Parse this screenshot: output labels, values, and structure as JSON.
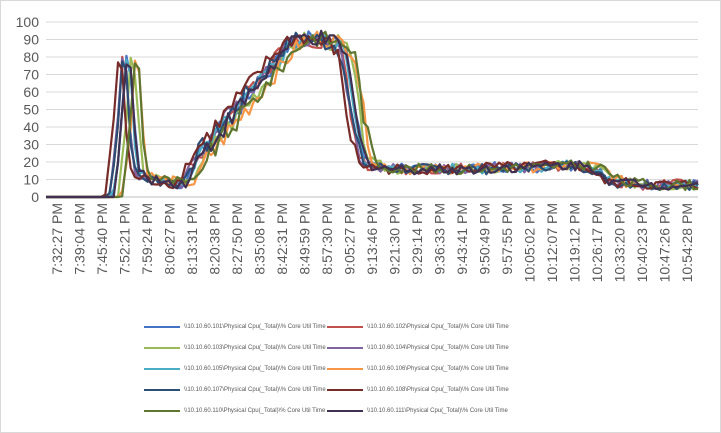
{
  "chart_data": {
    "type": "line",
    "ylim": [
      0,
      100
    ],
    "yticks": [
      0,
      10,
      20,
      30,
      40,
      50,
      60,
      70,
      80,
      90,
      100
    ],
    "grid": "horizontal",
    "legend_position": "bottom",
    "categories": [
      "7:32:27 PM",
      "7:39:04 PM",
      "7:45:40 PM",
      "7:52:21 PM",
      "7:59:24 PM",
      "8:06:27 PM",
      "8:13:31 PM",
      "8:20:38 PM",
      "8:27:50 PM",
      "8:35:08 PM",
      "8:42:31 PM",
      "8:49:59 PM",
      "8:57:30 PM",
      "9:05:27 PM",
      "9:13:46 PM",
      "9:21:30 PM",
      "9:29:14 PM",
      "9:36:33 PM",
      "9:43:41 PM",
      "9:50:49 PM",
      "9:57:55 PM",
      "10:05:02 PM",
      "10:12:07 PM",
      "10:19:12 PM",
      "10:26:17 PM",
      "10:33:20 PM",
      "10:40:23 PM",
      "10:47:26 PM",
      "10:54:28 PM"
    ],
    "base_profile": [
      0,
      0,
      0,
      0,
      0,
      0,
      0,
      0,
      0,
      0,
      0,
      0,
      0,
      0,
      0,
      0,
      2,
      20,
      45,
      78,
      72,
      35,
      15,
      12,
      11,
      10,
      10,
      9,
      9,
      9,
      8,
      8,
      8,
      8,
      12,
      18,
      22,
      25,
      28,
      31,
      34,
      37,
      40,
      43,
      46,
      49,
      52,
      55,
      58,
      61,
      64,
      67,
      70,
      73,
      76,
      79,
      82,
      85,
      87,
      89,
      90,
      91,
      91,
      91,
      90,
      90,
      89,
      88,
      88,
      87,
      85,
      80,
      65,
      48,
      35,
      25,
      20,
      18,
      18,
      17,
      17,
      17,
      16,
      16,
      16,
      16,
      16,
      16,
      16,
      16,
      16,
      16,
      16,
      16,
      16,
      16,
      16,
      16,
      16,
      16,
      16,
      16,
      16,
      16,
      16,
      16,
      17,
      17,
      17,
      17,
      17,
      17,
      17,
      17,
      17,
      17,
      17,
      17,
      18,
      18,
      18,
      18,
      18,
      18,
      18,
      18,
      18,
      18,
      17,
      17,
      16,
      14,
      12,
      10,
      9,
      8,
      8,
      8,
      8,
      8,
      8,
      8,
      7,
      7,
      7,
      7,
      7,
      7,
      7,
      7,
      7,
      7,
      7,
      7,
      7
    ],
    "series": [
      {
        "name": "\\\\10.10.60.101\\Physical Cpu(_Total)\\% Core Util Time",
        "color": "#4472c4",
        "shift": 0,
        "noise_seed": 1
      },
      {
        "name": "\\\\10.10.60.102\\Physical Cpu(_Total)\\% Core Util Time",
        "color": "#c0504d",
        "shift": 1,
        "noise_seed": 2
      },
      {
        "name": "\\\\10.10.60.103\\Physical Cpu(_Total)\\% Core Util Time",
        "color": "#9bbb59",
        "shift": -1,
        "noise_seed": 3
      },
      {
        "name": "\\\\10.10.60.104\\Physical Cpu(_Total)\\% Core Util Time",
        "color": "#8064a2",
        "shift": 1,
        "noise_seed": 4
      },
      {
        "name": "\\\\10.10.60.105\\Physical Cpu(_Total)\\% Core Util Time",
        "color": "#4bacc6",
        "shift": 0,
        "noise_seed": 5
      },
      {
        "name": "\\\\10.10.60.106\\Physical Cpu(_Total)\\% Core Util Time",
        "color": "#f79646",
        "shift": -2,
        "noise_seed": 6
      },
      {
        "name": "\\\\10.10.60.107\\Physical Cpu(_Total)\\% Core Util Time",
        "color": "#2c4d75",
        "shift": 1,
        "noise_seed": 7
      },
      {
        "name": "\\\\10.10.60.108\\Physical Cpu(_Total)\\% Core Util Time",
        "color": "#772c2a",
        "shift": 2,
        "noise_seed": 8
      },
      {
        "name": "\\\\10.10.60.110\\Physical Cpu(_Total)\\% Core Util Time",
        "color": "#5f7530",
        "shift": -2,
        "noise_seed": 9
      },
      {
        "name": "\\\\10.10.60.111\\Physical Cpu(_Total)\\% Core Util Time",
        "color": "#403152",
        "shift": 0,
        "noise_seed": 10
      }
    ]
  }
}
